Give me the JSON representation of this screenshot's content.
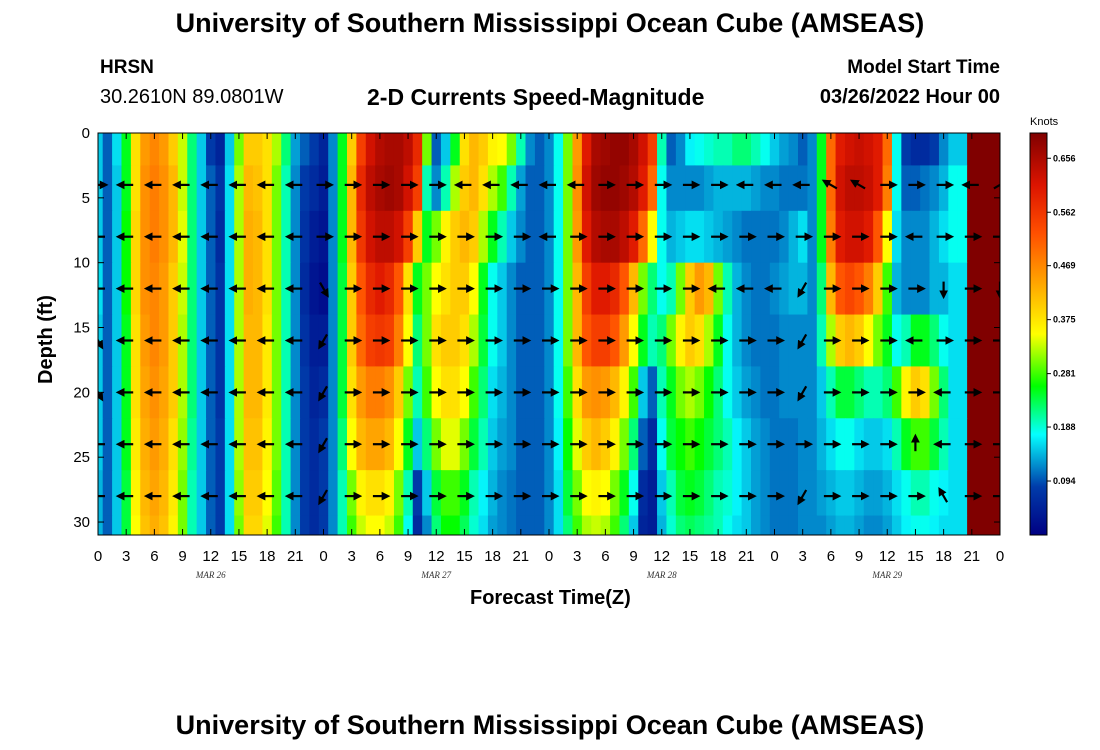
{
  "header": {
    "title_top": "University of Southern Mississippi Ocean Cube (AMSEAS)",
    "title_bottom": "University of Southern Mississippi Ocean Cube (AMSEAS)",
    "station": "HRSN",
    "coords": "30.2610N  89.0801W",
    "subtitle": "2-D Currents Speed-Magnitude",
    "model_start_label": "Model Start Time",
    "model_start_value": "03/26/2022 Hour 00"
  },
  "chart_data": {
    "type": "heatmap",
    "title": "2-D Currents Speed-Magnitude",
    "xlabel": "Forecast Time(Z)",
    "ylabel": "Depth (ft)",
    "x_unit": "forecast hour",
    "xlim": [
      0,
      96
    ],
    "ylim": [
      0,
      31
    ],
    "x_ticks": [
      0,
      3,
      6,
      9,
      12,
      15,
      18,
      21,
      24,
      27,
      30,
      33,
      36,
      39,
      42,
      45,
      48,
      51,
      54,
      57,
      60,
      63,
      66,
      69,
      72,
      75,
      78,
      81,
      84,
      87,
      90,
      93,
      96
    ],
    "x_tick_labels": [
      "0",
      "3",
      "6",
      "9",
      "12",
      "15",
      "18",
      "21",
      "0",
      "3",
      "6",
      "9",
      "12",
      "15",
      "18",
      "21",
      "0",
      "3",
      "6",
      "9",
      "12",
      "15",
      "18",
      "21",
      "0",
      "3",
      "6",
      "9",
      "12",
      "15",
      "18",
      "21",
      "0"
    ],
    "y_ticks": [
      0,
      5,
      10,
      15,
      20,
      25,
      30
    ],
    "y_tick_labels": [
      "0",
      "5",
      "10",
      "15",
      "20",
      "25",
      "30"
    ],
    "date_labels": [
      {
        "hour": 12,
        "text": "MAR 26"
      },
      {
        "hour": 36,
        "text": "MAR 27"
      },
      {
        "hour": 60,
        "text": "MAR 28"
      },
      {
        "hour": 84,
        "text": "MAR 29"
      }
    ],
    "colorbar": {
      "unit": "Knots",
      "min": 0,
      "max": 0.7,
      "ticks": [
        0.094,
        0.188,
        0.281,
        0.375,
        0.469,
        0.562,
        0.656
      ],
      "tick_labels": [
        "0.094",
        "0.188",
        "0.281",
        "0.375",
        "0.469",
        "0.562",
        "0.656"
      ]
    },
    "hours": [
      0,
      1,
      2,
      3,
      4,
      5,
      6,
      7,
      8,
      9,
      10,
      11,
      12,
      13,
      14,
      15,
      16,
      17,
      18,
      19,
      20,
      21,
      22,
      23,
      24,
      25,
      26,
      27,
      28,
      29,
      30,
      31,
      32,
      33,
      34,
      35,
      36,
      37,
      38,
      39,
      40,
      41,
      42,
      43,
      44,
      45,
      46,
      47,
      48,
      49,
      50,
      51,
      52,
      53,
      54,
      55,
      56,
      57,
      58,
      59,
      60,
      61,
      62,
      63,
      64,
      65,
      66,
      67,
      68,
      69,
      70,
      71,
      72,
      73,
      74,
      75,
      76,
      77,
      78,
      79,
      80,
      81,
      82,
      83,
      84,
      85,
      86,
      87,
      88,
      89,
      90,
      91,
      92,
      93,
      94,
      95,
      96
    ],
    "depths": [
      1,
      4,
      8,
      12,
      16,
      20,
      24,
      28,
      31
    ],
    "speed_knots": [
      [
        0.15,
        0.1,
        0.16,
        0.25,
        0.38,
        0.45,
        0.47,
        0.45,
        0.4,
        0.33,
        0.22,
        0.15,
        0.08,
        0.05,
        0.15,
        0.3,
        0.4,
        0.4,
        0.38,
        0.32,
        0.22,
        0.13,
        0.1,
        0.08,
        0.05,
        0.12,
        0.25,
        0.4,
        0.55,
        0.62,
        0.65,
        0.66,
        0.66,
        0.64,
        0.58,
        0.3,
        0.1,
        0.15,
        0.25,
        0.38,
        0.42,
        0.4,
        0.36,
        0.35,
        0.3,
        0.2,
        0.12,
        0.1,
        0.12,
        0.18,
        0.3,
        0.45,
        0.6,
        0.66,
        0.67,
        0.68,
        0.68,
        0.66,
        0.62,
        0.55,
        0.2,
        0.1,
        0.12,
        0.17,
        0.18,
        0.19,
        0.2,
        0.2,
        0.22,
        0.22,
        0.2,
        0.18,
        0.15,
        0.13,
        0.12,
        0.1,
        0.12,
        0.25,
        0.5,
        0.6,
        0.62,
        0.63,
        0.62,
        0.6,
        0.5,
        0.18,
        0.08,
        0.06,
        0.06,
        0.08,
        0.12,
        0.15,
        0.15
      ],
      [
        0.15,
        0.1,
        0.15,
        0.25,
        0.38,
        0.46,
        0.48,
        0.46,
        0.42,
        0.33,
        0.22,
        0.15,
        0.1,
        0.07,
        0.16,
        0.32,
        0.42,
        0.41,
        0.38,
        0.3,
        0.2,
        0.12,
        0.08,
        0.06,
        0.04,
        0.12,
        0.25,
        0.42,
        0.58,
        0.64,
        0.66,
        0.67,
        0.66,
        0.62,
        0.55,
        0.2,
        0.12,
        0.2,
        0.32,
        0.4,
        0.42,
        0.38,
        0.32,
        0.28,
        0.2,
        0.13,
        0.1,
        0.1,
        0.12,
        0.18,
        0.3,
        0.46,
        0.62,
        0.67,
        0.68,
        0.68,
        0.67,
        0.65,
        0.6,
        0.5,
        0.18,
        0.12,
        0.12,
        0.12,
        0.12,
        0.13,
        0.14,
        0.14,
        0.14,
        0.14,
        0.13,
        0.12,
        0.12,
        0.11,
        0.11,
        0.11,
        0.12,
        0.25,
        0.5,
        0.62,
        0.64,
        0.64,
        0.63,
        0.6,
        0.48,
        0.18,
        0.1,
        0.1,
        0.11,
        0.12,
        0.14,
        0.18,
        0.18
      ],
      [
        0.15,
        0.1,
        0.15,
        0.26,
        0.39,
        0.46,
        0.48,
        0.46,
        0.42,
        0.34,
        0.22,
        0.15,
        0.1,
        0.06,
        0.16,
        0.32,
        0.43,
        0.42,
        0.38,
        0.3,
        0.2,
        0.12,
        0.07,
        0.04,
        0.03,
        0.12,
        0.25,
        0.42,
        0.56,
        0.62,
        0.64,
        0.64,
        0.62,
        0.55,
        0.4,
        0.25,
        0.3,
        0.36,
        0.4,
        0.42,
        0.4,
        0.32,
        0.25,
        0.2,
        0.15,
        0.12,
        0.1,
        0.1,
        0.12,
        0.18,
        0.3,
        0.45,
        0.6,
        0.65,
        0.66,
        0.66,
        0.64,
        0.6,
        0.5,
        0.35,
        0.18,
        0.14,
        0.15,
        0.16,
        0.16,
        0.15,
        0.14,
        0.13,
        0.12,
        0.11,
        0.11,
        0.11,
        0.11,
        0.12,
        0.14,
        0.16,
        0.12,
        0.25,
        0.48,
        0.6,
        0.62,
        0.62,
        0.6,
        0.52,
        0.35,
        0.16,
        0.12,
        0.12,
        0.12,
        0.14,
        0.16,
        0.18,
        0.18
      ],
      [
        0.16,
        0.1,
        0.15,
        0.26,
        0.39,
        0.46,
        0.47,
        0.45,
        0.4,
        0.33,
        0.22,
        0.15,
        0.1,
        0.07,
        0.16,
        0.32,
        0.43,
        0.42,
        0.38,
        0.3,
        0.2,
        0.12,
        0.06,
        0.03,
        0.02,
        0.12,
        0.24,
        0.4,
        0.52,
        0.58,
        0.6,
        0.58,
        0.52,
        0.38,
        0.25,
        0.3,
        0.35,
        0.38,
        0.4,
        0.4,
        0.35,
        0.25,
        0.18,
        0.15,
        0.12,
        0.1,
        0.1,
        0.1,
        0.12,
        0.18,
        0.3,
        0.42,
        0.55,
        0.6,
        0.6,
        0.58,
        0.52,
        0.42,
        0.3,
        0.22,
        0.18,
        0.2,
        0.3,
        0.4,
        0.45,
        0.42,
        0.3,
        0.2,
        0.14,
        0.12,
        0.11,
        0.11,
        0.12,
        0.13,
        0.14,
        0.14,
        0.12,
        0.22,
        0.42,
        0.52,
        0.54,
        0.52,
        0.48,
        0.4,
        0.28,
        0.14,
        0.12,
        0.12,
        0.12,
        0.14,
        0.14,
        0.16,
        0.16
      ],
      [
        0.15,
        0.1,
        0.15,
        0.25,
        0.38,
        0.45,
        0.47,
        0.45,
        0.4,
        0.32,
        0.22,
        0.15,
        0.1,
        0.07,
        0.16,
        0.32,
        0.42,
        0.42,
        0.37,
        0.3,
        0.2,
        0.12,
        0.07,
        0.04,
        0.04,
        0.12,
        0.24,
        0.4,
        0.5,
        0.55,
        0.56,
        0.55,
        0.48,
        0.35,
        0.22,
        0.3,
        0.38,
        0.4,
        0.4,
        0.38,
        0.32,
        0.24,
        0.18,
        0.15,
        0.12,
        0.1,
        0.1,
        0.1,
        0.12,
        0.18,
        0.3,
        0.42,
        0.52,
        0.55,
        0.55,
        0.52,
        0.45,
        0.35,
        0.25,
        0.2,
        0.22,
        0.3,
        0.36,
        0.4,
        0.38,
        0.32,
        0.25,
        0.18,
        0.14,
        0.12,
        0.11,
        0.11,
        0.11,
        0.12,
        0.12,
        0.12,
        0.12,
        0.2,
        0.32,
        0.4,
        0.42,
        0.4,
        0.35,
        0.3,
        0.25,
        0.18,
        0.2,
        0.25,
        0.25,
        0.22,
        0.18,
        0.16,
        0.16
      ],
      [
        0.15,
        0.1,
        0.15,
        0.25,
        0.38,
        0.44,
        0.46,
        0.44,
        0.4,
        0.32,
        0.22,
        0.15,
        0.1,
        0.07,
        0.16,
        0.32,
        0.42,
        0.42,
        0.37,
        0.3,
        0.2,
        0.12,
        0.08,
        0.05,
        0.06,
        0.12,
        0.24,
        0.38,
        0.45,
        0.48,
        0.48,
        0.46,
        0.4,
        0.3,
        0.2,
        0.28,
        0.35,
        0.38,
        0.38,
        0.35,
        0.28,
        0.22,
        0.16,
        0.14,
        0.12,
        0.1,
        0.1,
        0.1,
        0.12,
        0.18,
        0.28,
        0.38,
        0.45,
        0.46,
        0.45,
        0.42,
        0.36,
        0.28,
        0.15,
        0.1,
        0.2,
        0.25,
        0.3,
        0.32,
        0.3,
        0.26,
        0.22,
        0.18,
        0.15,
        0.13,
        0.12,
        0.11,
        0.11,
        0.12,
        0.12,
        0.12,
        0.12,
        0.15,
        0.2,
        0.24,
        0.24,
        0.22,
        0.2,
        0.2,
        0.22,
        0.28,
        0.36,
        0.4,
        0.38,
        0.3,
        0.22,
        0.16,
        0.16
      ],
      [
        0.15,
        0.1,
        0.15,
        0.25,
        0.37,
        0.43,
        0.45,
        0.43,
        0.38,
        0.31,
        0.21,
        0.15,
        0.1,
        0.08,
        0.16,
        0.32,
        0.41,
        0.41,
        0.36,
        0.3,
        0.2,
        0.12,
        0.08,
        0.06,
        0.08,
        0.12,
        0.22,
        0.35,
        0.42,
        0.44,
        0.44,
        0.42,
        0.35,
        0.25,
        0.15,
        0.22,
        0.3,
        0.34,
        0.34,
        0.3,
        0.24,
        0.2,
        0.15,
        0.13,
        0.12,
        0.1,
        0.1,
        0.1,
        0.12,
        0.17,
        0.26,
        0.34,
        0.4,
        0.42,
        0.4,
        0.36,
        0.3,
        0.22,
        0.1,
        0.06,
        0.18,
        0.24,
        0.26,
        0.28,
        0.26,
        0.24,
        0.22,
        0.2,
        0.17,
        0.15,
        0.13,
        0.12,
        0.11,
        0.11,
        0.11,
        0.12,
        0.12,
        0.14,
        0.16,
        0.18,
        0.18,
        0.16,
        0.15,
        0.15,
        0.16,
        0.2,
        0.25,
        0.28,
        0.28,
        0.24,
        0.2,
        0.16,
        0.16
      ],
      [
        0.14,
        0.1,
        0.15,
        0.24,
        0.36,
        0.42,
        0.44,
        0.42,
        0.37,
        0.3,
        0.2,
        0.15,
        0.1,
        0.08,
        0.16,
        0.31,
        0.4,
        0.4,
        0.35,
        0.29,
        0.2,
        0.12,
        0.08,
        0.06,
        0.08,
        0.12,
        0.2,
        0.3,
        0.36,
        0.38,
        0.38,
        0.36,
        0.3,
        0.2,
        0.08,
        0.15,
        0.24,
        0.28,
        0.28,
        0.25,
        0.2,
        0.17,
        0.14,
        0.12,
        0.11,
        0.1,
        0.1,
        0.1,
        0.12,
        0.16,
        0.24,
        0.3,
        0.35,
        0.36,
        0.35,
        0.3,
        0.25,
        0.18,
        0.06,
        0.04,
        0.15,
        0.2,
        0.24,
        0.25,
        0.24,
        0.22,
        0.2,
        0.19,
        0.17,
        0.15,
        0.13,
        0.12,
        0.11,
        0.11,
        0.11,
        0.12,
        0.12,
        0.13,
        0.14,
        0.15,
        0.15,
        0.14,
        0.13,
        0.13,
        0.14,
        0.16,
        0.18,
        0.2,
        0.2,
        0.18,
        0.17,
        0.16,
        0.16
      ],
      [
        0.14,
        0.1,
        0.15,
        0.24,
        0.35,
        0.41,
        0.43,
        0.41,
        0.36,
        0.3,
        0.2,
        0.15,
        0.1,
        0.08,
        0.16,
        0.3,
        0.39,
        0.39,
        0.34,
        0.28,
        0.2,
        0.12,
        0.08,
        0.06,
        0.08,
        0.12,
        0.2,
        0.28,
        0.33,
        0.35,
        0.35,
        0.33,
        0.28,
        0.18,
        0.06,
        0.12,
        0.22,
        0.26,
        0.26,
        0.23,
        0.19,
        0.16,
        0.13,
        0.12,
        0.11,
        0.1,
        0.1,
        0.1,
        0.12,
        0.16,
        0.22,
        0.28,
        0.32,
        0.33,
        0.32,
        0.28,
        0.22,
        0.15,
        0.05,
        0.04,
        0.14,
        0.19,
        0.22,
        0.23,
        0.22,
        0.21,
        0.2,
        0.18,
        0.16,
        0.15,
        0.13,
        0.12,
        0.11,
        0.11,
        0.11,
        0.12,
        0.12,
        0.12,
        0.13,
        0.14,
        0.14,
        0.13,
        0.12,
        0.12,
        0.13,
        0.15,
        0.17,
        0.18,
        0.18,
        0.17,
        0.16,
        0.16,
        0.16
      ]
    ],
    "vector_hours": [
      0,
      3,
      6,
      9,
      12,
      15,
      18,
      21,
      24,
      27,
      30,
      33,
      36,
      39,
      42,
      45,
      48,
      51,
      54,
      57,
      60,
      63,
      66,
      69,
      72,
      75,
      78,
      81,
      84,
      87,
      90,
      93,
      96
    ],
    "vector_depths": [
      4,
      8,
      12,
      16,
      20,
      24,
      28
    ],
    "vector_dir_deg": [
      [
        0,
        180,
        180,
        180,
        180,
        180,
        180,
        180,
        0,
        0,
        0,
        0,
        0,
        180,
        180,
        180,
        180,
        180,
        0,
        0,
        0,
        0,
        0,
        180,
        180,
        180,
        150,
        150,
        0,
        0,
        0,
        180,
        30
      ],
      [
        180,
        180,
        180,
        180,
        180,
        180,
        180,
        180,
        0,
        0,
        0,
        0,
        0,
        0,
        0,
        0,
        180,
        0,
        0,
        0,
        0,
        0,
        0,
        0,
        0,
        0,
        0,
        0,
        0,
        180,
        0,
        0,
        0
      ],
      [
        180,
        180,
        180,
        180,
        180,
        180,
        180,
        180,
        300,
        0,
        0,
        0,
        0,
        0,
        0,
        0,
        0,
        0,
        0,
        0,
        0,
        0,
        180,
        180,
        180,
        240,
        0,
        0,
        0,
        0,
        270,
        0,
        270
      ],
      [
        300,
        180,
        180,
        180,
        180,
        180,
        180,
        180,
        240,
        0,
        0,
        0,
        0,
        0,
        0,
        0,
        0,
        0,
        0,
        0,
        0,
        0,
        0,
        0,
        0,
        240,
        0,
        0,
        0,
        180,
        0,
        0,
        0
      ],
      [
        300,
        180,
        180,
        180,
        180,
        180,
        180,
        180,
        240,
        0,
        0,
        0,
        0,
        0,
        0,
        0,
        0,
        0,
        0,
        0,
        0,
        0,
        0,
        0,
        0,
        240,
        0,
        0,
        0,
        0,
        180,
        0,
        0
      ],
      [
        180,
        180,
        180,
        180,
        180,
        180,
        180,
        180,
        240,
        0,
        0,
        0,
        0,
        0,
        0,
        0,
        0,
        0,
        0,
        0,
        0,
        0,
        0,
        0,
        0,
        0,
        0,
        0,
        0,
        90,
        180,
        0,
        0
      ],
      [
        180,
        180,
        180,
        180,
        180,
        180,
        180,
        180,
        240,
        0,
        0,
        0,
        0,
        0,
        0,
        0,
        0,
        0,
        0,
        0,
        0,
        0,
        0,
        0,
        0,
        240,
        0,
        0,
        0,
        0,
        120,
        0,
        0
      ]
    ]
  }
}
